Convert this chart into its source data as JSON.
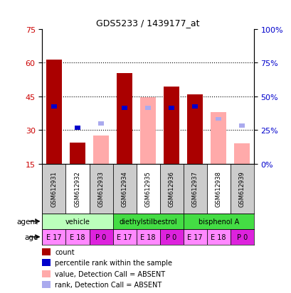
{
  "title": "GDS5233 / 1439177_at",
  "samples": [
    "GSM612931",
    "GSM612932",
    "GSM612933",
    "GSM612934",
    "GSM612935",
    "GSM612936",
    "GSM612937",
    "GSM612938",
    "GSM612939"
  ],
  "left_ylim": [
    15,
    75
  ],
  "left_yticks": [
    15,
    30,
    45,
    60,
    75
  ],
  "right_ylim": [
    0,
    100
  ],
  "right_yticks": [
    0,
    25,
    50,
    75,
    100
  ],
  "right_yticklabels": [
    "0%",
    "25%",
    "50%",
    "75%",
    "100%"
  ],
  "count_values": [
    61.5,
    24.5,
    null,
    55.5,
    null,
    49.5,
    46.0,
    null,
    null
  ],
  "rank_values": [
    40.5,
    31.0,
    null,
    40.0,
    null,
    40.0,
    40.5,
    null,
    null
  ],
  "absent_value_values": [
    null,
    null,
    27.5,
    null,
    44.5,
    null,
    null,
    38.0,
    24.0
  ],
  "absent_rank_values": [
    null,
    null,
    33.0,
    null,
    40.0,
    null,
    null,
    35.0,
    32.0
  ],
  "bar_bottom": 15,
  "count_color": "#aa0000",
  "rank_color": "#0000cc",
  "absent_value_color": "#ffaaaa",
  "absent_rank_color": "#aaaaee",
  "agent_groups": [
    {
      "label": "vehicle",
      "start": 0,
      "end": 3,
      "color": "#bbffbb"
    },
    {
      "label": "diethylstilbestrol",
      "start": 3,
      "end": 6,
      "color": "#44dd44"
    },
    {
      "label": "bisphenol A",
      "start": 6,
      "end": 9,
      "color": "#44dd44"
    }
  ],
  "age_labels": [
    "E 17",
    "E 18",
    "P 0",
    "E 17",
    "E 18",
    "P 0",
    "E 17",
    "E 18",
    "P 0"
  ],
  "age_colors": [
    "#ff88ff",
    "#ff88ff",
    "#dd22dd",
    "#ff88ff",
    "#ff88ff",
    "#dd22dd",
    "#ff88ff",
    "#ff88ff",
    "#dd22dd"
  ],
  "sample_bg_colors": [
    "#cccccc",
    "#ffffff",
    "#cccccc",
    "#cccccc",
    "#ffffff",
    "#cccccc",
    "#cccccc",
    "#ffffff",
    "#cccccc"
  ],
  "ylabel_left_color": "#cc0000",
  "ylabel_right_color": "#0000cc",
  "dotted_lines": [
    30,
    45,
    60
  ],
  "legend_items": [
    {
      "color": "#aa0000",
      "label": "count"
    },
    {
      "color": "#0000cc",
      "label": "percentile rank within the sample"
    },
    {
      "color": "#ffaaaa",
      "label": "value, Detection Call = ABSENT"
    },
    {
      "color": "#aaaaee",
      "label": "rank, Detection Call = ABSENT"
    }
  ]
}
